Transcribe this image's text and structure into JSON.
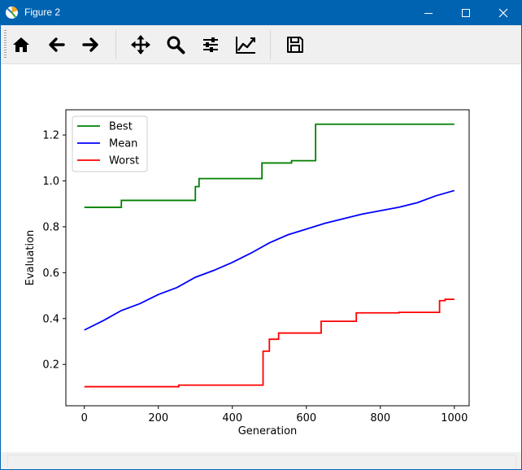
{
  "window": {
    "title": "Figure 2"
  },
  "toolbar": {
    "buttons": [
      {
        "name": "home-button",
        "icon": "home-icon"
      },
      {
        "name": "back-button",
        "icon": "arrow-left-icon"
      },
      {
        "name": "forward-button",
        "icon": "arrow-right-icon"
      },
      {
        "name": "pan-button",
        "icon": "move-icon"
      },
      {
        "name": "zoom-button",
        "icon": "magnifier-icon"
      },
      {
        "name": "subplots-button",
        "icon": "sliders-icon"
      },
      {
        "name": "edit-axis-button",
        "icon": "line-chart-icon"
      },
      {
        "name": "save-button",
        "icon": "floppy-disk-icon"
      }
    ]
  },
  "chart_data": {
    "type": "line",
    "title": "",
    "xlabel": "Generation",
    "ylabel": "Evaluation",
    "xlim": [
      -50,
      1040
    ],
    "ylim": [
      0.02,
      1.31
    ],
    "xticks": [
      0,
      200,
      400,
      600,
      800,
      1000
    ],
    "yticks": [
      0.2,
      0.4,
      0.6,
      0.8,
      1.0,
      1.2
    ],
    "grid": false,
    "legend": "top-left",
    "series": [
      {
        "name": "Best",
        "color": "#008000",
        "step": true,
        "x": [
          0,
          100,
          300,
          310,
          480,
          560,
          625,
          1000
        ],
        "y": [
          0.885,
          0.915,
          0.975,
          1.01,
          1.078,
          1.088,
          1.247,
          1.247
        ]
      },
      {
        "name": "Mean",
        "color": "#0000ff",
        "step": false,
        "x": [
          0,
          50,
          100,
          150,
          200,
          250,
          300,
          350,
          400,
          450,
          500,
          550,
          600,
          650,
          700,
          750,
          800,
          850,
          900,
          950,
          1000
        ],
        "y": [
          0.35,
          0.39,
          0.435,
          0.465,
          0.505,
          0.535,
          0.58,
          0.61,
          0.645,
          0.685,
          0.73,
          0.765,
          0.79,
          0.815,
          0.835,
          0.855,
          0.87,
          0.885,
          0.905,
          0.935,
          0.958
        ]
      },
      {
        "name": "Worst",
        "color": "#ff0000",
        "step": true,
        "x": [
          0,
          255,
          483,
          500,
          525,
          640,
          735,
          850,
          960,
          975,
          1000
        ],
        "y": [
          0.103,
          0.11,
          0.258,
          0.31,
          0.337,
          0.388,
          0.425,
          0.427,
          0.478,
          0.484,
          0.484
        ]
      }
    ]
  }
}
